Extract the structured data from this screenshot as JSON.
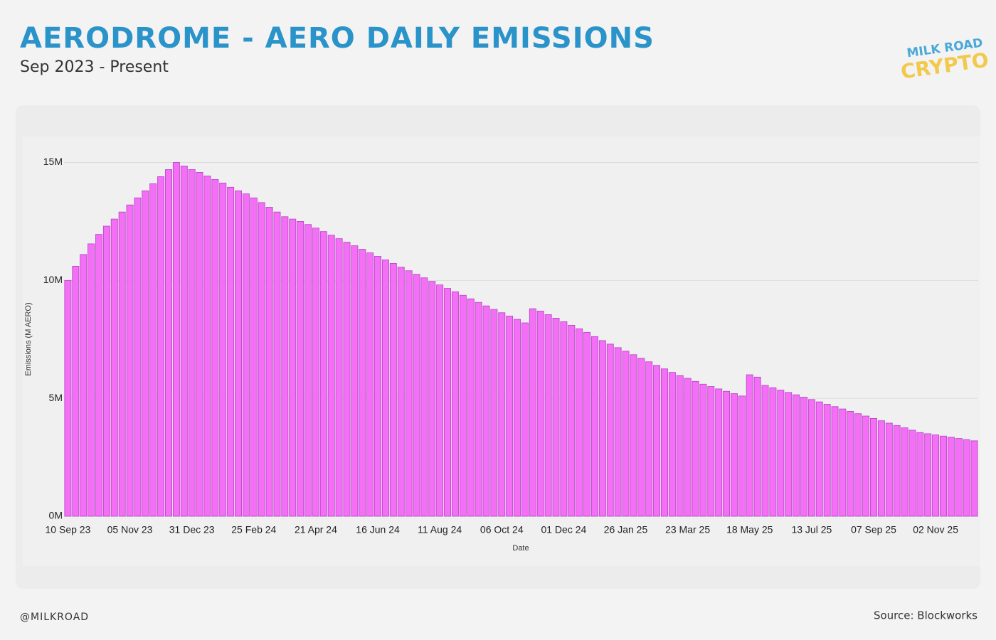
{
  "chart_data": {
    "type": "bar",
    "title": "AERODROME - AERO DAILY EMISSIONS",
    "subtitle": "Sep 2023 - Present",
    "logo": [
      "MILK ROAD",
      "CRYPTO"
    ],
    "handle": "@MILKROAD",
    "source": "Source: Blockworks",
    "x_label": "Date",
    "y_label": "Emissions (M AERO)",
    "color": "#f46ef6",
    "grid": true,
    "ylim": [
      0,
      16.1
    ],
    "yticks": [
      {
        "value": 0,
        "label": "0M"
      },
      {
        "value": 5,
        "label": "5M"
      },
      {
        "value": 10,
        "label": "10M"
      },
      {
        "value": 15,
        "label": "15M"
      }
    ],
    "categories": [
      "10 Sep 23",
      null,
      null,
      null,
      null,
      null,
      null,
      null,
      "05 Nov 23",
      null,
      null,
      null,
      null,
      null,
      null,
      null,
      "31 Dec 23",
      null,
      null,
      null,
      null,
      null,
      null,
      null,
      "25 Feb 24",
      null,
      null,
      null,
      null,
      null,
      null,
      null,
      "21 Apr 24",
      null,
      null,
      null,
      null,
      null,
      null,
      null,
      "16 Jun 24",
      null,
      null,
      null,
      null,
      null,
      null,
      null,
      "11 Aug 24",
      null,
      null,
      null,
      null,
      null,
      null,
      null,
      "06 Oct 24",
      null,
      null,
      null,
      null,
      null,
      null,
      null,
      "01 Dec 24",
      null,
      null,
      null,
      null,
      null,
      null,
      null,
      "26 Jan 25",
      null,
      null,
      null,
      null,
      null,
      null,
      null,
      "23 Mar 25",
      null,
      null,
      null,
      null,
      null,
      null,
      null,
      "18 May 25",
      null,
      null,
      null,
      null,
      null,
      null,
      null,
      "13 Jul 25",
      null,
      null,
      null,
      null,
      null,
      null,
      null,
      "07 Sep 25",
      null,
      null,
      null,
      null,
      null,
      null,
      null,
      "02 Nov 25",
      null,
      null,
      null,
      null,
      null
    ],
    "values": [
      10.0,
      10.6,
      11.1,
      11.55,
      11.95,
      12.3,
      12.6,
      12.9,
      13.2,
      13.5,
      13.8,
      14.1,
      14.4,
      14.7,
      15.0,
      14.85,
      14.7,
      14.58,
      14.43,
      14.28,
      14.13,
      13.95,
      13.8,
      13.67,
      13.5,
      13.3,
      13.1,
      12.9,
      12.7,
      12.6,
      12.5,
      12.37,
      12.22,
      12.07,
      11.92,
      11.77,
      11.62,
      11.47,
      11.32,
      11.17,
      11.02,
      10.87,
      10.72,
      10.56,
      10.41,
      10.26,
      10.11,
      9.96,
      9.81,
      9.66,
      9.52,
      9.37,
      9.22,
      9.07,
      8.92,
      8.77,
      8.63,
      8.49,
      8.35,
      8.2,
      8.8,
      8.7,
      8.55,
      8.4,
      8.25,
      8.1,
      7.95,
      7.8,
      7.62,
      7.45,
      7.3,
      7.15,
      7.0,
      6.85,
      6.7,
      6.55,
      6.4,
      6.25,
      6.1,
      5.97,
      5.85,
      5.72,
      5.6,
      5.5,
      5.4,
      5.3,
      5.2,
      5.1,
      6.0,
      5.9,
      5.55,
      5.45,
      5.35,
      5.25,
      5.15,
      5.05,
      4.95,
      4.85,
      4.75,
      4.65,
      4.55,
      4.45,
      4.35,
      4.25,
      4.15,
      4.05,
      3.95,
      3.85,
      3.75,
      3.65,
      3.55,
      3.5,
      3.45,
      3.4,
      3.35,
      3.3,
      3.25,
      3.2
    ]
  }
}
